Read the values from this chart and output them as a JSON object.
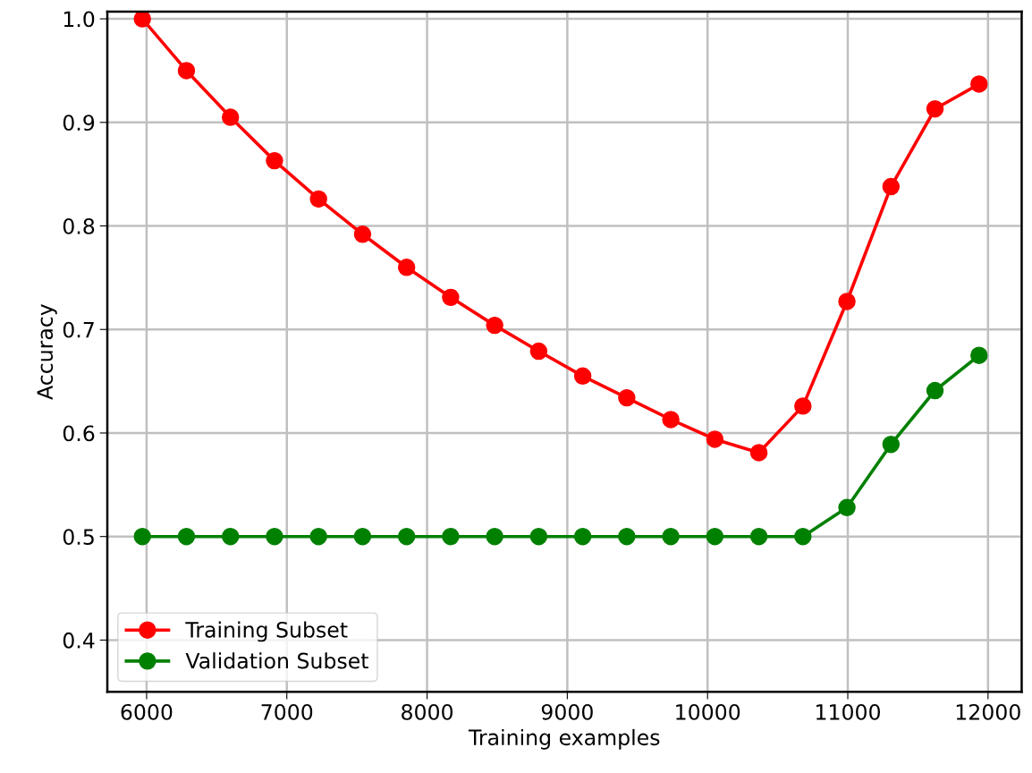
{
  "chart_data": {
    "type": "line",
    "xlabel": "Training examples",
    "ylabel": "Accuracy",
    "x": [
      5970,
      6284,
      6598,
      6912,
      7226,
      7540,
      7854,
      8168,
      8482,
      8796,
      9110,
      9424,
      9738,
      10052,
      10366,
      10680,
      10994,
      11308,
      11622,
      11936
    ],
    "series": [
      {
        "name": "Training Subset",
        "color": "#ff0000",
        "values": [
          1.0,
          0.95,
          0.905,
          0.863,
          0.826,
          0.792,
          0.76,
          0.731,
          0.704,
          0.679,
          0.655,
          0.634,
          0.613,
          0.594,
          0.581,
          0.626,
          0.727,
          0.838,
          0.913,
          0.937
        ]
      },
      {
        "name": "Validation Subset",
        "color": "#008000",
        "values": [
          0.5,
          0.5,
          0.5,
          0.5,
          0.5,
          0.5,
          0.5,
          0.5,
          0.5,
          0.5,
          0.5,
          0.5,
          0.5,
          0.5,
          0.5,
          0.5,
          0.528,
          0.589,
          0.641,
          0.675
        ]
      }
    ],
    "xlim": [
      5720,
      12240
    ],
    "ylim": [
      0.35,
      1.007
    ],
    "xticks": [
      6000,
      7000,
      8000,
      9000,
      10000,
      11000,
      12000
    ],
    "yticks": [
      0.4,
      0.5,
      0.6,
      0.7,
      0.8,
      0.9,
      {
        "value": 1.0,
        "label": "1.0"
      }
    ],
    "grid": true,
    "legend": "bottom left",
    "marker": "circle",
    "line_style": "solid"
  }
}
